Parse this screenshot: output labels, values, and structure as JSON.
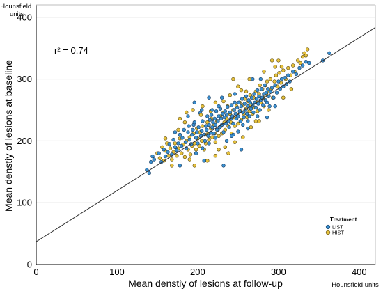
{
  "chart_data": {
    "type": "scatter",
    "title": "",
    "xlabel": "Mean denstiy of lesions at follow-up",
    "ylabel": "Mean denstiy of lesions at baseline",
    "x_unit": "Hounsfield units",
    "y_unit": "Hounsfield units",
    "xlim": [
      0,
      420
    ],
    "ylim": [
      0,
      420
    ],
    "xticks": [
      "0",
      "100",
      "200",
      "300",
      "400"
    ],
    "yticks": [
      "0",
      "100",
      "200",
      "300",
      "400"
    ],
    "grid": "horizontal",
    "annotation": "r² = 0.74",
    "legend": {
      "title": "Treatment",
      "position": "bottom-right",
      "items": [
        {
          "name": "LIST",
          "color": "#3a8fd0"
        },
        {
          "name": "HIST",
          "color": "#e6c13d"
        }
      ]
    },
    "fit_line": {
      "intercept": 37,
      "slope": 0.825
    },
    "series": [
      {
        "name": "LIST",
        "color": "#3a8fd0",
        "points": [
          [
            137,
            153
          ],
          [
            140,
            148
          ],
          [
            142,
            166
          ],
          [
            144,
            175
          ],
          [
            146,
            170
          ],
          [
            152,
            180
          ],
          [
            155,
            166
          ],
          [
            158,
            186
          ],
          [
            160,
            175
          ],
          [
            163,
            182
          ],
          [
            165,
            195
          ],
          [
            168,
            178
          ],
          [
            170,
            202
          ],
          [
            172,
            190
          ],
          [
            174,
            185
          ],
          [
            176,
            196
          ],
          [
            178,
            210
          ],
          [
            180,
            192
          ],
          [
            181,
            205
          ],
          [
            183,
            218
          ],
          [
            185,
            198
          ],
          [
            186,
            188
          ],
          [
            188,
            214
          ],
          [
            189,
            224
          ],
          [
            190,
            202
          ],
          [
            192,
            195
          ],
          [
            193,
            210
          ],
          [
            195,
            226
          ],
          [
            196,
            230
          ],
          [
            198,
            205
          ],
          [
            199,
            214
          ],
          [
            200,
            196
          ],
          [
            201,
            222
          ],
          [
            203,
            245
          ],
          [
            204,
            208
          ],
          [
            205,
            216
          ],
          [
            206,
            232
          ],
          [
            208,
            210
          ],
          [
            209,
            200
          ],
          [
            210,
            224
          ],
          [
            211,
            218
          ],
          [
            212,
            240
          ],
          [
            213,
            208
          ],
          [
            214,
            226
          ],
          [
            215,
            234
          ],
          [
            216,
            213
          ],
          [
            217,
            242
          ],
          [
            218,
            222
          ],
          [
            219,
            230
          ],
          [
            220,
            212
          ],
          [
            221,
            236
          ],
          [
            222,
            226
          ],
          [
            223,
            248
          ],
          [
            224,
            218
          ],
          [
            225,
            232
          ],
          [
            226,
            240
          ],
          [
            227,
            222
          ],
          [
            228,
            252
          ],
          [
            229,
            236
          ],
          [
            230,
            226
          ],
          [
            231,
            244
          ],
          [
            232,
            214
          ],
          [
            233,
            238
          ],
          [
            234,
            248
          ],
          [
            235,
            228
          ],
          [
            236,
            242
          ],
          [
            237,
            255
          ],
          [
            238,
            232
          ],
          [
            239,
            222
          ],
          [
            240,
            246
          ],
          [
            241,
            236
          ],
          [
            242,
            258
          ],
          [
            243,
            240
          ],
          [
            244,
            228
          ],
          [
            245,
            250
          ],
          [
            246,
            262
          ],
          [
            247,
            244
          ],
          [
            248,
            236
          ],
          [
            249,
            254
          ],
          [
            250,
            240
          ],
          [
            251,
            262
          ],
          [
            252,
            248
          ],
          [
            253,
            232
          ],
          [
            254,
            256
          ],
          [
            255,
            268
          ],
          [
            256,
            246
          ],
          [
            257,
            238
          ],
          [
            258,
            260
          ],
          [
            259,
            250
          ],
          [
            260,
            272
          ],
          [
            261,
            244
          ],
          [
            262,
            256
          ],
          [
            263,
            266
          ],
          [
            264,
            240
          ],
          [
            265,
            262
          ],
          [
            266,
            252
          ],
          [
            267,
            270
          ],
          [
            268,
            258
          ],
          [
            269,
            246
          ],
          [
            270,
            276
          ],
          [
            271,
            262
          ],
          [
            272,
            254
          ],
          [
            273,
            268
          ],
          [
            274,
            282
          ],
          [
            275,
            260
          ],
          [
            276,
            272
          ],
          [
            277,
            250
          ],
          [
            278,
            266
          ],
          [
            279,
            284
          ],
          [
            280,
            270
          ],
          [
            281,
            258
          ],
          [
            282,
            276
          ],
          [
            283,
            290
          ],
          [
            284,
            266
          ],
          [
            285,
            278
          ],
          [
            286,
            262
          ],
          [
            287,
            284
          ],
          [
            288,
            272
          ],
          [
            289,
            256
          ],
          [
            290,
            280
          ],
          [
            292,
            286
          ],
          [
            294,
            270
          ],
          [
            296,
            290
          ],
          [
            298,
            278
          ],
          [
            300,
            296
          ],
          [
            302,
            284
          ],
          [
            304,
            300
          ],
          [
            306,
            288
          ],
          [
            308,
            302
          ],
          [
            310,
            292
          ],
          [
            312,
            306
          ],
          [
            314,
            296
          ],
          [
            318,
            312
          ],
          [
            322,
            308
          ],
          [
            326,
            318
          ],
          [
            330,
            322
          ],
          [
            334,
            328
          ],
          [
            338,
            326
          ],
          [
            355,
            330
          ],
          [
            363,
            342
          ],
          [
            196,
            262
          ],
          [
            208,
            168
          ],
          [
            222,
            205
          ],
          [
            236,
            200
          ],
          [
            244,
            210
          ],
          [
            250,
            215
          ],
          [
            262,
            220
          ],
          [
            205,
            250
          ],
          [
            214,
            196
          ],
          [
            226,
            256
          ],
          [
            188,
            240
          ],
          [
            178,
            160
          ],
          [
            286,
            238
          ],
          [
            296,
            256
          ],
          [
            172,
            214
          ],
          [
            232,
            160
          ],
          [
            254,
            186
          ],
          [
            198,
            180
          ],
          [
            268,
            300
          ],
          [
            242,
            208
          ],
          [
            214,
            270
          ],
          [
            256,
            226
          ],
          [
            230,
            270
          ],
          [
            274,
            240
          ],
          [
            206,
            188
          ],
          [
            246,
            276
          ],
          [
            218,
            250
          ],
          [
            262,
            232
          ],
          [
            194,
            218
          ],
          [
            278,
            300
          ]
        ]
      },
      {
        "name": "HIST",
        "color": "#e6c13d",
        "points": [
          [
            150,
            180
          ],
          [
            153,
            172
          ],
          [
            156,
            190
          ],
          [
            158,
            168
          ],
          [
            160,
            184
          ],
          [
            162,
            196
          ],
          [
            164,
            176
          ],
          [
            166,
            188
          ],
          [
            168,
            170
          ],
          [
            170,
            182
          ],
          [
            172,
            196
          ],
          [
            174,
            176
          ],
          [
            176,
            188
          ],
          [
            178,
            204
          ],
          [
            180,
            180
          ],
          [
            182,
            194
          ],
          [
            184,
            174
          ],
          [
            186,
            200
          ],
          [
            188,
            186
          ],
          [
            190,
            206
          ],
          [
            191,
            178
          ],
          [
            193,
            192
          ],
          [
            195,
            212
          ],
          [
            196,
            196
          ],
          [
            198,
            186
          ],
          [
            199,
            220
          ],
          [
            200,
            204
          ],
          [
            202,
            192
          ],
          [
            203,
            214
          ],
          [
            205,
            200
          ],
          [
            206,
            224
          ],
          [
            208,
            186
          ],
          [
            209,
            210
          ],
          [
            210,
            196
          ],
          [
            212,
            230
          ],
          [
            213,
            212
          ],
          [
            214,
            202
          ],
          [
            216,
            220
          ],
          [
            217,
            236
          ],
          [
            218,
            206
          ],
          [
            220,
            226
          ],
          [
            221,
            212
          ],
          [
            222,
            198
          ],
          [
            224,
            232
          ],
          [
            225,
            218
          ],
          [
            226,
            208
          ],
          [
            228,
            240
          ],
          [
            229,
            224
          ],
          [
            230,
            212
          ],
          [
            232,
            246
          ],
          [
            233,
            230
          ],
          [
            234,
            218
          ],
          [
            236,
            236
          ],
          [
            237,
            256
          ],
          [
            238,
            224
          ],
          [
            240,
            244
          ],
          [
            241,
            230
          ],
          [
            242,
            212
          ],
          [
            244,
            250
          ],
          [
            245,
            238
          ],
          [
            246,
            224
          ],
          [
            248,
            256
          ],
          [
            249,
            242
          ],
          [
            250,
            228
          ],
          [
            252,
            262
          ],
          [
            253,
            248
          ],
          [
            254,
            234
          ],
          [
            256,
            258
          ],
          [
            257,
            244
          ],
          [
            258,
            268
          ],
          [
            260,
            252
          ],
          [
            261,
            238
          ],
          [
            262,
            264
          ],
          [
            264,
            248
          ],
          [
            265,
            274
          ],
          [
            266,
            258
          ],
          [
            268,
            244
          ],
          [
            269,
            270
          ],
          [
            270,
            254
          ],
          [
            272,
            280
          ],
          [
            273,
            262
          ],
          [
            274,
            248
          ],
          [
            276,
            276
          ],
          [
            277,
            290
          ],
          [
            278,
            262
          ],
          [
            280,
            284
          ],
          [
            281,
            270
          ],
          [
            282,
            256
          ],
          [
            284,
            290
          ],
          [
            285,
            276
          ],
          [
            286,
            296
          ],
          [
            288,
            280
          ],
          [
            290,
            300
          ],
          [
            291,
            284
          ],
          [
            293,
            270
          ],
          [
            295,
            296
          ],
          [
            297,
            306
          ],
          [
            299,
            288
          ],
          [
            301,
            310
          ],
          [
            303,
            294
          ],
          [
            306,
            314
          ],
          [
            309,
            300
          ],
          [
            312,
            318
          ],
          [
            315,
            306
          ],
          [
            318,
            322
          ],
          [
            320,
            312
          ],
          [
            324,
            330
          ],
          [
            327,
            326
          ],
          [
            330,
            336
          ],
          [
            332,
            342
          ],
          [
            334,
            338
          ],
          [
            336,
            348
          ],
          [
            292,
            330
          ],
          [
            296,
            320
          ],
          [
            304,
            320
          ],
          [
            178,
            236
          ],
          [
            186,
            246
          ],
          [
            194,
            250
          ],
          [
            206,
            256
          ],
          [
            222,
            262
          ],
          [
            232,
            264
          ],
          [
            240,
            274
          ],
          [
            250,
            288
          ],
          [
            212,
            168
          ],
          [
            222,
            176
          ],
          [
            234,
            190
          ],
          [
            246,
            198
          ],
          [
            256,
            206
          ],
          [
            266,
            222
          ],
          [
            276,
            232
          ],
          [
            196,
            160
          ],
          [
            168,
            160
          ],
          [
            160,
            204
          ],
          [
            184,
            230
          ],
          [
            204,
            242
          ],
          [
            264,
            300
          ],
          [
            282,
            312
          ],
          [
            300,
            330
          ],
          [
            244,
            300
          ],
          [
            254,
            282
          ],
          [
            272,
            232
          ],
          [
            288,
            250
          ],
          [
            306,
            270
          ],
          [
            316,
            284
          ],
          [
            238,
            180
          ],
          [
            226,
            186
          ],
          [
            190,
            170
          ],
          [
            176,
            218
          ],
          [
            216,
            248
          ],
          [
            260,
            280
          ]
        ]
      }
    ]
  }
}
